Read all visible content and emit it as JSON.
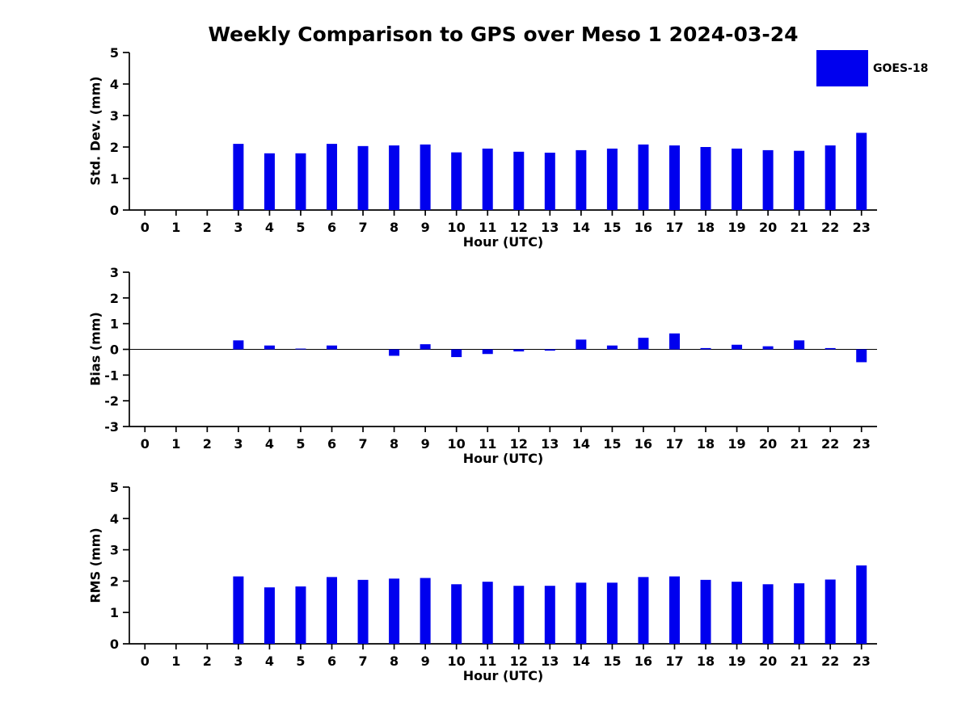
{
  "title": "Weekly Comparison to GPS over Meso 1 2024-03-24",
  "legend": {
    "label": "GOES-18",
    "color": "#0000EE"
  },
  "chart_data": [
    {
      "type": "bar",
      "series_name": "GOES-18",
      "x": [
        0,
        1,
        2,
        3,
        4,
        5,
        6,
        7,
        8,
        9,
        10,
        11,
        12,
        13,
        14,
        15,
        16,
        17,
        18,
        19,
        20,
        21,
        22,
        23
      ],
      "values": [
        0,
        0,
        0,
        2.1,
        1.8,
        1.8,
        2.1,
        2.03,
        2.05,
        2.08,
        1.83,
        1.95,
        1.85,
        1.82,
        1.9,
        1.95,
        2.08,
        2.05,
        2.0,
        1.95,
        1.9,
        1.88,
        2.05,
        2.45
      ],
      "xlabel": "Hour (UTC)",
      "ylabel": "Std. Dev. (mm)",
      "ylim": [
        0,
        5
      ],
      "yticks": [
        0,
        1,
        2,
        3,
        4,
        5
      ]
    },
    {
      "type": "bar",
      "series_name": "GOES-18",
      "x": [
        0,
        1,
        2,
        3,
        4,
        5,
        6,
        7,
        8,
        9,
        10,
        11,
        12,
        13,
        14,
        15,
        16,
        17,
        18,
        19,
        20,
        21,
        22,
        23
      ],
      "values": [
        0,
        0,
        0,
        0.35,
        0.15,
        0.03,
        0.15,
        0,
        -0.25,
        0.2,
        -0.3,
        -0.18,
        -0.08,
        -0.05,
        0.38,
        0.15,
        0.45,
        0.62,
        0.05,
        0.18,
        0.12,
        0.35,
        0.05,
        -0.5
      ],
      "xlabel": "Hour (UTC)",
      "ylabel": "Bias (mm)",
      "ylim": [
        -3,
        3
      ],
      "yticks": [
        -3,
        -2,
        -1,
        0,
        1,
        2,
        3
      ]
    },
    {
      "type": "bar",
      "series_name": "GOES-18",
      "x": [
        0,
        1,
        2,
        3,
        4,
        5,
        6,
        7,
        8,
        9,
        10,
        11,
        12,
        13,
        14,
        15,
        16,
        17,
        18,
        19,
        20,
        21,
        22,
        23
      ],
      "values": [
        0,
        0,
        0,
        2.15,
        1.8,
        1.83,
        2.13,
        2.04,
        2.08,
        2.1,
        1.9,
        1.98,
        1.85,
        1.85,
        1.95,
        1.95,
        2.13,
        2.15,
        2.04,
        1.98,
        1.9,
        1.93,
        2.05,
        2.5
      ],
      "xlabel": "Hour (UTC)",
      "ylabel": "RMS (mm)",
      "ylim": [
        0,
        5
      ],
      "yticks": [
        0,
        1,
        2,
        3,
        4,
        5
      ]
    }
  ]
}
